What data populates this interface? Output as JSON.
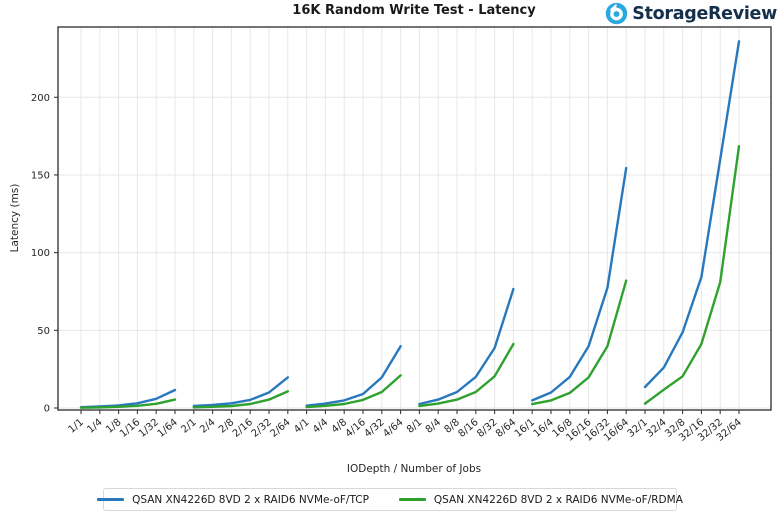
{
  "header": {
    "logo_text": "StorageReview",
    "logo_icon_color": "#29a8df",
    "logo_text_color": "#14304a"
  },
  "chart_data": {
    "type": "line",
    "title": "16K Random Write Test - Latency",
    "xlabel": "IODepth / Number of Jobs",
    "ylabel": "Latency (ms)",
    "categories": [
      "1/1",
      "1/4",
      "1/8",
      "1/16",
      "1/32",
      "1/64",
      "2/1",
      "2/4",
      "2/8",
      "2/16",
      "2/32",
      "2/64",
      "4/1",
      "4/4",
      "4/8",
      "4/16",
      "4/32",
      "4/64",
      "8/1",
      "8/4",
      "8/8",
      "8/16",
      "8/32",
      "8/64",
      "16/1",
      "16/4",
      "16/8",
      "16/16",
      "16/32",
      "16/64",
      "32/1",
      "32/4",
      "32/8",
      "32/16",
      "32/32",
      "32/64"
    ],
    "group_size": 6,
    "yticks": [
      0,
      50,
      100,
      150,
      200
    ],
    "ylim": [
      0,
      245
    ],
    "grid": true,
    "grid_color": "#e7e7e7",
    "spine_color": "#3a3a3a",
    "legend_position": "bottom",
    "series": [
      {
        "name": "QSAN XN4226D 8VD 2 x RAID6 NVMe-oF/TCP",
        "color": "#2878be",
        "values": [
          0.5,
          1.0,
          1.7,
          3.0,
          5.9,
          11.6,
          1.3,
          1.9,
          3.0,
          5.2,
          10.0,
          19.7,
          1.5,
          2.8,
          4.9,
          9.0,
          19.7,
          39.7,
          2.6,
          5.4,
          10.3,
          20.0,
          38.6,
          76.6,
          4.9,
          10.0,
          20.0,
          39.7,
          77.3,
          154.5,
          13.5,
          26.0,
          48.7,
          84.3,
          160.0,
          236.0
        ]
      },
      {
        "name": "QSAN XN4226D 8VD 2 x RAID6 NVMe-oF/RDMA",
        "color": "#2fa12e",
        "values": [
          0.2,
          0.4,
          0.8,
          1.4,
          2.7,
          5.4,
          0.4,
          0.8,
          1.3,
          2.6,
          5.4,
          10.7,
          0.6,
          1.4,
          2.6,
          5.2,
          10.3,
          21.0,
          1.3,
          2.8,
          5.4,
          10.3,
          20.4,
          41.2,
          2.5,
          4.9,
          9.7,
          19.7,
          39.7,
          82.0,
          2.8,
          11.8,
          20.4,
          41.2,
          81.0,
          168.5
        ]
      }
    ]
  }
}
